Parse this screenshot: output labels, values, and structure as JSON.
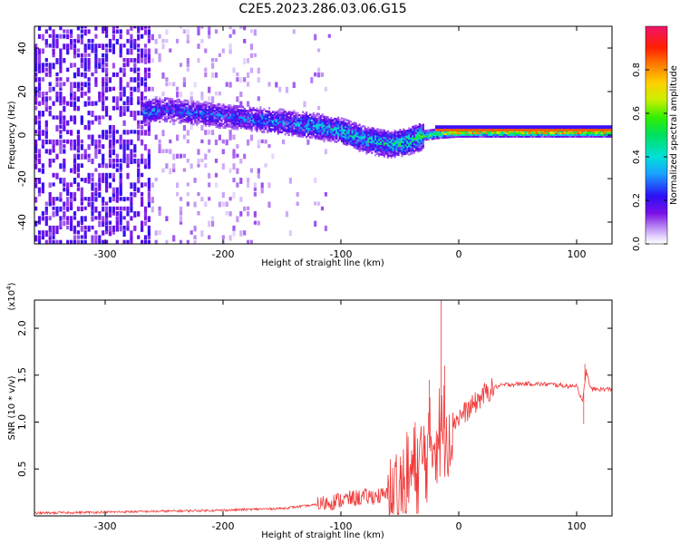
{
  "title": "C2E5.2023.286.03.06.G15",
  "chart_data": [
    {
      "type": "heatmap",
      "xlabel": "Height of straight line (km)",
      "ylabel": "Frequency (Hz)",
      "xlim": [
        -360,
        130
      ],
      "ylim": [
        -50,
        50
      ],
      "x_ticks": [
        -300,
        -200,
        -100,
        0,
        100
      ],
      "x_tick_labels": [
        "-300",
        "-200",
        "-100",
        "0",
        "100"
      ],
      "y_ticks": [
        -40,
        -20,
        0,
        20,
        40
      ],
      "y_tick_labels": [
        "-40",
        "-20",
        "0",
        "20",
        "40"
      ],
      "colorbar": {
        "label": "Normalized spectral amplitude",
        "range": [
          0,
          1
        ],
        "ticks": [
          0.0,
          0.2,
          0.4,
          0.6,
          0.8
        ],
        "tick_labels": [
          "0.0",
          "0.2",
          "0.4",
          "0.6",
          "0.8"
        ],
        "colormap": "rainbow"
      },
      "ridge": {
        "x": [
          -265,
          -250,
          -200,
          -150,
          -120,
          -100,
          -80,
          -60,
          -45,
          -30,
          -15,
          0,
          50,
          100,
          130
        ],
        "frequency": [
          11,
          12,
          9,
          6,
          4,
          2,
          -2,
          -4,
          -3,
          0,
          1,
          1.5,
          1.5,
          1.5,
          1.5
        ],
        "amplitude": [
          0.35,
          0.3,
          0.3,
          0.35,
          0.4,
          0.45,
          0.45,
          0.5,
          0.55,
          0.6,
          0.7,
          0.85,
          0.85,
          0.85,
          0.85
        ]
      },
      "noise_band": {
        "x_from": -360,
        "x_to": -170
      }
    },
    {
      "type": "line",
      "xlabel": "Height of straight line (km)",
      "ylabel": "SNR (10 * v/v)",
      "y_multiplier_label": "(x10",
      "y_multiplier_exponent": "4",
      "y_multiplier_close": ")",
      "xlim": [
        -360,
        130
      ],
      "ylim": [
        0,
        2.3
      ],
      "x_ticks": [
        -300,
        -200,
        -100,
        0,
        100
      ],
      "x_tick_labels": [
        "-300",
        "-200",
        "-100",
        "0",
        "100"
      ],
      "y_ticks": [
        0.5,
        1.0,
        1.5,
        2.0
      ],
      "y_tick_labels": [
        "0.5",
        "1.0",
        "1.5",
        "2.0"
      ],
      "series": [
        {
          "color": "#f03a3a",
          "x": [
            -360,
            -300,
            -250,
            -200,
            -150,
            -120,
            -100,
            -80,
            -60,
            -50,
            -40,
            -30,
            -20,
            -15,
            -10,
            0,
            10,
            20,
            30,
            40,
            60,
            80,
            95,
            100,
            105,
            108,
            112,
            130
          ],
          "y": [
            0.03,
            0.04,
            0.05,
            0.06,
            0.08,
            0.12,
            0.17,
            0.2,
            0.22,
            0.3,
            0.45,
            0.6,
            0.85,
            0.9,
            0.95,
            1.05,
            1.15,
            1.28,
            1.37,
            1.4,
            1.41,
            1.4,
            1.38,
            1.4,
            1.2,
            1.55,
            1.35,
            1.35
          ]
        }
      ],
      "spikes": [
        {
          "x": -15,
          "y": 2.3
        },
        {
          "x": -25,
          "y": 1.45
        },
        {
          "x": -12,
          "y": 1.6
        },
        {
          "x": 107,
          "y": 1.62
        },
        {
          "x": 106,
          "y": 0.98
        }
      ]
    }
  ]
}
